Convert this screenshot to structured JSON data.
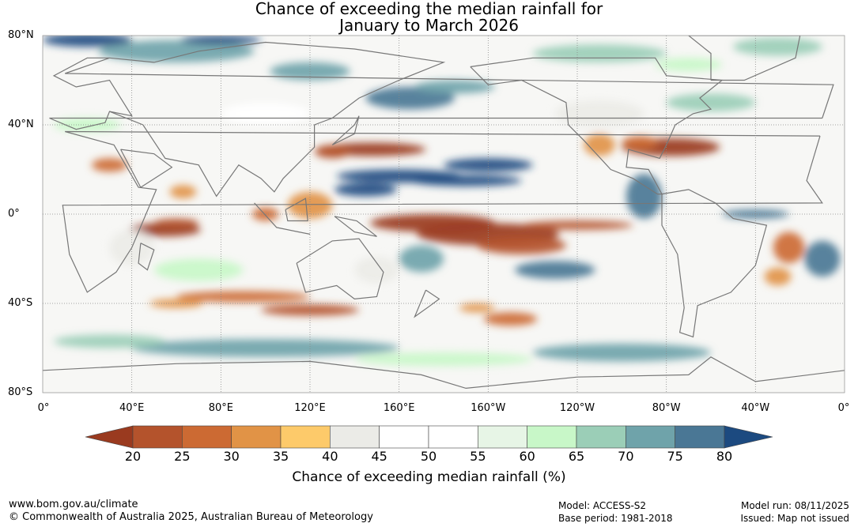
{
  "title_line1": "Chance of exceeding the median rainfall for",
  "title_line2": "January to March 2026",
  "lat_labels": [
    "80°N",
    "40°N",
    "0°",
    "40°S",
    "80°S"
  ],
  "lon_labels": [
    "0°",
    "40°E",
    "80°E",
    "120°E",
    "160°E",
    "160°W",
    "120°W",
    "80°W",
    "40°W",
    "0°"
  ],
  "colorbar": {
    "ticks": [
      "20",
      "25",
      "30",
      "35",
      "40",
      "45",
      "50",
      "55",
      "60",
      "65",
      "70",
      "75",
      "80"
    ],
    "colors": [
      "#9a3a1f",
      "#b4532c",
      "#cc6a33",
      "#e19346",
      "#fdca6a",
      "#ebebe7",
      "#ffffff",
      "#ffffff",
      "#e7f5e6",
      "#c8f7c8",
      "#9bceb7",
      "#6fa3aa",
      "#4a7795",
      "#1c4a80"
    ],
    "title": "Chance of exceeding median rainfall (%)"
  },
  "footer": {
    "url": "www.bom.gov.au/climate",
    "copyright": "© Commonwealth of Australia 2025, Australian Bureau of Meteorology",
    "model": "Model: ACCESS-S2",
    "base_period": "Base period: 1981-2018",
    "model_run": "Model run: 08/11/2025",
    "issued": "Issued: Map not issued"
  }
}
